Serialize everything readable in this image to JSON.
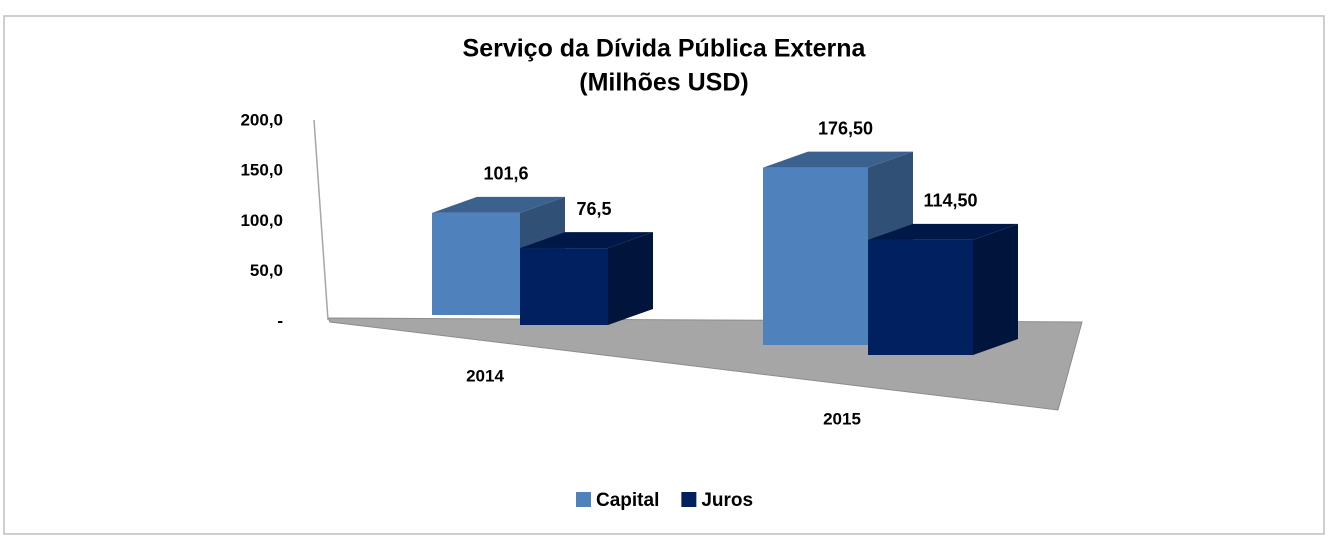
{
  "chart_data": {
    "type": "bar3d",
    "title": "Serviço da Dívida Pública Externa",
    "subtitle": "(Milhões USD)",
    "categories": [
      "2014",
      "2015"
    ],
    "series": [
      {
        "name": "Capital",
        "color": "#4f81bd",
        "values": [
          101.6,
          176.5
        ],
        "value_labels": [
          "101,6",
          "176,50"
        ]
      },
      {
        "name": "Juros",
        "color": "#002060",
        "values": [
          76.5,
          114.5
        ],
        "value_labels": [
          "76,5",
          "114,50"
        ]
      }
    ],
    "ylim": [
      0,
      200
    ],
    "yticks": [
      {
        "value": 0,
        "label": "-"
      },
      {
        "value": 50,
        "label": "50,0"
      },
      {
        "value": 100,
        "label": "100,0"
      },
      {
        "value": 150,
        "label": "150,0"
      },
      {
        "value": 200,
        "label": "200,0"
      }
    ],
    "legend": "bottom"
  }
}
